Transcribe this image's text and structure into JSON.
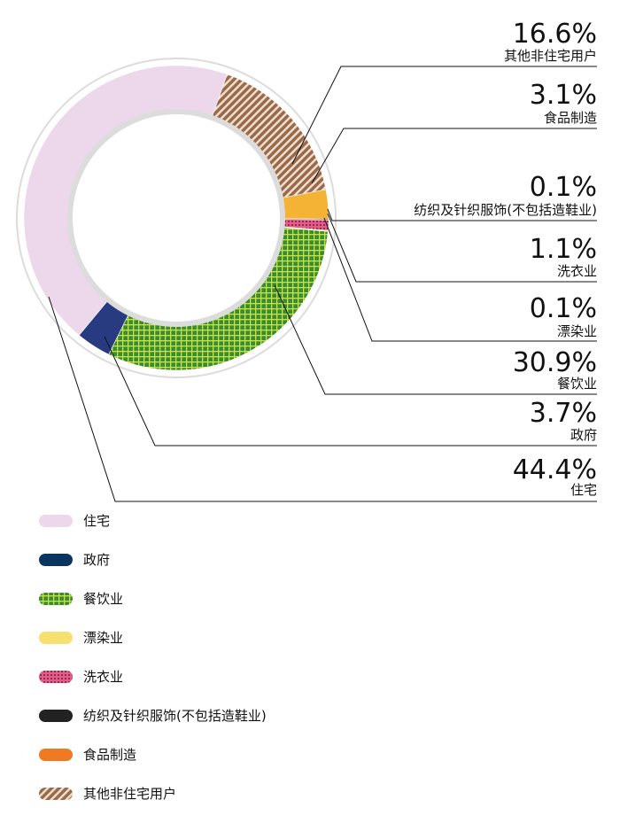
{
  "chart_data": {
    "type": "pie",
    "title": "",
    "categories": [
      "其他非住宅用户",
      "食品制造",
      "纺织及针织服饰(不包括造鞋业)",
      "洗衣业",
      "漂染业",
      "餐饮业",
      "政府",
      "住宅"
    ],
    "values": [
      16.6,
      3.1,
      0.1,
      1.1,
      0.1,
      30.9,
      3.7,
      44.4
    ],
    "value_labels": [
      "16.6%",
      "3.1%",
      "0.1%",
      "1.1%",
      "0.1%",
      "30.9%",
      "3.7%",
      "44.4%"
    ],
    "colors": [
      "#9a6a4a",
      "#f5b335",
      "#222222",
      "#e85a8a",
      "#f7e070",
      "#3a8c2f",
      "#283a80",
      "#ecd8ea"
    ],
    "legend": {
      "placement": "bottom-left",
      "items": [
        {
          "label": "住宅",
          "color": "#ecd8ea",
          "pattern": "none"
        },
        {
          "label": "政府",
          "color": "#0a3560",
          "pattern": "none"
        },
        {
          "label": "餐饮业",
          "color": "#3a8c2f",
          "pattern": "grid"
        },
        {
          "label": "漂染业",
          "color": "#f7e070",
          "pattern": "none"
        },
        {
          "label": "洗衣业",
          "color": "#e85a8a",
          "pattern": "dots"
        },
        {
          "label": "纺织及针织服饰(不包括造鞋业)",
          "color": "#222222",
          "pattern": "none"
        },
        {
          "label": "食品制造",
          "color": "#ef7a22",
          "pattern": "none"
        },
        {
          "label": "其他非住宅用户",
          "color": "#9a6a4a",
          "pattern": "hatch"
        }
      ]
    }
  }
}
